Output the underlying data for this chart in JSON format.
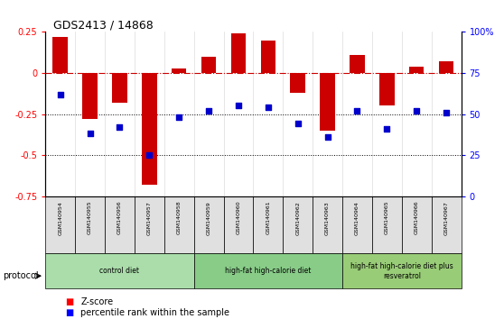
{
  "title": "GDS2413 / 14868",
  "samples": [
    "GSM140954",
    "GSM140955",
    "GSM140956",
    "GSM140957",
    "GSM140958",
    "GSM140959",
    "GSM140960",
    "GSM140961",
    "GSM140962",
    "GSM140963",
    "GSM140964",
    "GSM140965",
    "GSM140966",
    "GSM140967"
  ],
  "zscore": [
    0.22,
    -0.28,
    -0.18,
    -0.68,
    0.03,
    0.1,
    0.24,
    0.2,
    -0.12,
    -0.35,
    0.11,
    -0.2,
    0.04,
    0.07
  ],
  "percentile": [
    62,
    38,
    42,
    25,
    48,
    52,
    55,
    54,
    44,
    36,
    52,
    41,
    52,
    51
  ],
  "ylim_left": [
    -0.75,
    0.25
  ],
  "ylim_right": [
    0,
    100
  ],
  "yticks_left": [
    -0.75,
    -0.5,
    -0.25,
    0.0,
    0.25
  ],
  "ytick_labels_left": [
    "-0.75",
    "-0.5",
    "-0.25",
    "0",
    "0.25"
  ],
  "yticks_right": [
    0,
    25,
    50,
    75,
    100
  ],
  "ytick_labels_right": [
    "0",
    "25",
    "50",
    "75",
    "100%"
  ],
  "hline_zero_color": "#cc0000",
  "hline_dotted_color": "#000000",
  "bar_color": "#cc0000",
  "dot_color": "#0000cc",
  "groups": [
    {
      "label": "control diet",
      "start": 0,
      "end": 5,
      "color": "#aaddaa"
    },
    {
      "label": "high-fat high-calorie diet",
      "start": 5,
      "end": 10,
      "color": "#88cc88"
    },
    {
      "label": "high-fat high-calorie diet plus\nresveratrol",
      "start": 10,
      "end": 14,
      "color": "#99cc77"
    }
  ],
  "legend_zscore_label": "Z-score",
  "legend_pct_label": "percentile rank within the sample",
  "bar_width": 0.5,
  "protocol_label": "protocol",
  "sample_bg_color": "#e0e0e0"
}
